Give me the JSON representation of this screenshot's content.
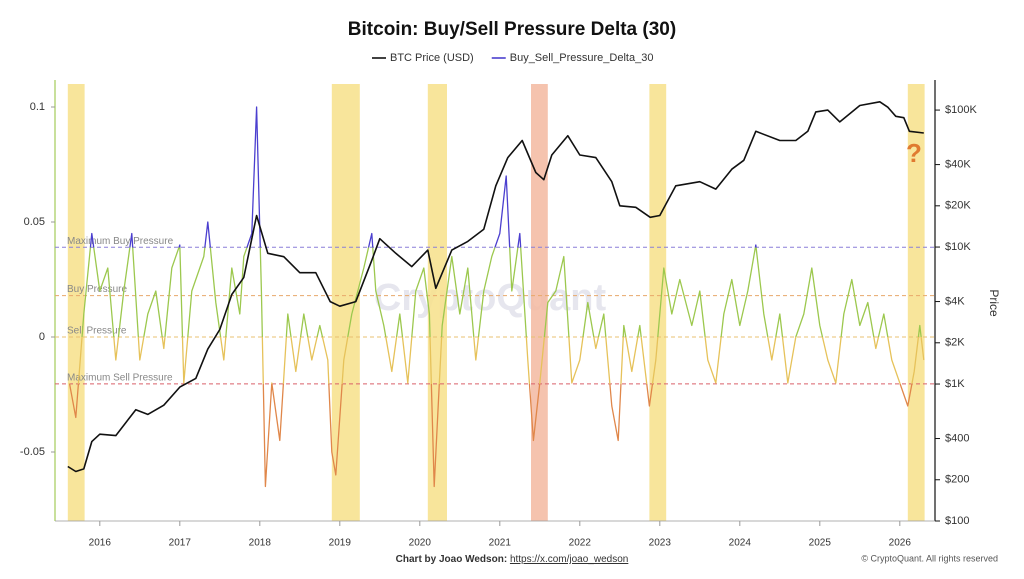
{
  "chart_data": {
    "type": "line",
    "title": "Bitcoin: Buy/Sell Pressure Delta (30)",
    "y2_label": "Price",
    "watermark": "CryptoQuant",
    "annotation": "?",
    "credit": {
      "label": "Chart by Joao Wedson:",
      "url": "https://x.com/joao_wedson"
    },
    "copyright": "© CryptoQuant. All rights reserved",
    "xlim": [
      2015.44,
      2026.44
    ],
    "xticks": [
      2016,
      2017,
      2018,
      2019,
      2020,
      2021,
      2022,
      2023,
      2024,
      2025,
      2026
    ],
    "ylim": [
      -0.08,
      0.11
    ],
    "yticks": [
      0.1,
      0.05,
      0,
      -0.05
    ],
    "y2lim": [
      100,
      155000
    ],
    "y2log": true,
    "y2ticks": [
      {
        "value": 100000,
        "label": "$100K"
      },
      {
        "value": 40000,
        "label": "$40K"
      },
      {
        "value": 20000,
        "label": "$20K"
      },
      {
        "value": 10000,
        "label": "$10K"
      },
      {
        "value": 4000,
        "label": "$4K"
      },
      {
        "value": 2000,
        "label": "$2K"
      },
      {
        "value": 1000,
        "label": "$1K"
      },
      {
        "value": 400,
        "label": "$400"
      },
      {
        "value": 200,
        "label": "$200"
      },
      {
        "value": 100,
        "label": "$100"
      }
    ],
    "highlight_bands": [
      {
        "range": [
          2015.6,
          2015.81
        ],
        "color": "#f7e08a"
      },
      {
        "range": [
          2018.9,
          2019.25
        ],
        "color": "#f7e08a"
      },
      {
        "range": [
          2020.1,
          2020.34
        ],
        "color": "#f7e08a"
      },
      {
        "range": [
          2021.39,
          2021.6
        ],
        "color": "#f3b9a0"
      },
      {
        "range": [
          2022.87,
          2023.08
        ],
        "color": "#f7e08a"
      },
      {
        "range": [
          2026.1,
          2026.31
        ],
        "color": "#f7e08a"
      }
    ],
    "reference_lines": [
      {
        "label": "Maximum Buy Pressure",
        "value": 0.039,
        "color": "#8a7fd8"
      },
      {
        "label": "Buy Pressure",
        "value": 0.018,
        "color": "#e8a86a"
      },
      {
        "label": "Sell Pressure",
        "value": 0,
        "color": "#e8c070"
      },
      {
        "label": "Maximum Sell Pressure",
        "value": -0.0204,
        "color": "#d9606a"
      }
    ],
    "series": [
      {
        "name": "BTC Price (USD)",
        "color": "#111111",
        "axis": "y2",
        "x": [
          2015.6,
          2015.7,
          2015.8,
          2015.9,
          2016.0,
          2016.2,
          2016.45,
          2016.6,
          2016.8,
          2017.0,
          2017.2,
          2017.35,
          2017.5,
          2017.65,
          2017.8,
          2017.96,
          2018.1,
          2018.3,
          2018.5,
          2018.7,
          2018.88,
          2019.0,
          2019.2,
          2019.4,
          2019.5,
          2019.7,
          2019.9,
          2020.1,
          2020.2,
          2020.4,
          2020.6,
          2020.8,
          2020.95,
          2021.1,
          2021.28,
          2021.45,
          2021.55,
          2021.65,
          2021.85,
          2022.0,
          2022.2,
          2022.4,
          2022.5,
          2022.7,
          2022.88,
          2023.0,
          2023.2,
          2023.5,
          2023.7,
          2023.9,
          2024.05,
          2024.2,
          2024.5,
          2024.7,
          2024.85,
          2024.95,
          2025.1,
          2025.25,
          2025.5,
          2025.75,
          2025.85,
          2025.95,
          2026.05,
          2026.12,
          2026.3
        ],
        "values": [
          250,
          230,
          240,
          380,
          430,
          420,
          650,
          600,
          700,
          950,
          1100,
          1800,
          2500,
          4500,
          6000,
          17000,
          9000,
          8500,
          6500,
          6500,
          4000,
          3700,
          4000,
          8000,
          11500,
          9000,
          7200,
          9500,
          5000,
          9500,
          11000,
          13500,
          28000,
          45000,
          60000,
          35000,
          31000,
          47000,
          65000,
          47000,
          45000,
          30000,
          20000,
          19500,
          16500,
          17000,
          28000,
          30000,
          26500,
          37000,
          43000,
          70000,
          60000,
          60000,
          70000,
          97000,
          100000,
          82000,
          108000,
          115000,
          105000,
          90000,
          88000,
          70000,
          68000
        ]
      },
      {
        "name": "Buy_Sell_Pressure_Delta_30",
        "color": "#4b3fcf",
        "x": [
          2015.62,
          2015.7,
          2015.8,
          2015.9,
          2016.0,
          2016.1,
          2016.2,
          2016.3,
          2016.4,
          2016.5,
          2016.6,
          2016.7,
          2016.8,
          2016.9,
          2017.0,
          2017.05,
          2017.15,
          2017.3,
          2017.35,
          2017.45,
          2017.55,
          2017.65,
          2017.75,
          2017.8,
          2017.9,
          2017.96,
          2018.02,
          2018.07,
          2018.15,
          2018.25,
          2018.35,
          2018.45,
          2018.55,
          2018.65,
          2018.75,
          2018.85,
          2018.9,
          2018.95,
          2019.05,
          2019.15,
          2019.3,
          2019.4,
          2019.45,
          2019.55,
          2019.65,
          2019.75,
          2019.85,
          2019.95,
          2020.05,
          2020.12,
          2020.18,
          2020.28,
          2020.4,
          2020.5,
          2020.6,
          2020.7,
          2020.8,
          2020.9,
          2021.0,
          2021.08,
          2021.15,
          2021.25,
          2021.35,
          2021.42,
          2021.5,
          2021.6,
          2021.7,
          2021.8,
          2021.9,
          2022.0,
          2022.1,
          2022.2,
          2022.3,
          2022.4,
          2022.48,
          2022.55,
          2022.65,
          2022.75,
          2022.87,
          2022.95,
          2023.05,
          2023.15,
          2023.25,
          2023.4,
          2023.5,
          2023.6,
          2023.7,
          2023.8,
          2023.9,
          2024.0,
          2024.1,
          2024.2,
          2024.3,
          2024.4,
          2024.5,
          2024.6,
          2024.7,
          2024.8,
          2024.9,
          2025.0,
          2025.1,
          2025.2,
          2025.3,
          2025.4,
          2025.5,
          2025.6,
          2025.7,
          2025.8,
          2025.9,
          2026.0,
          2026.1,
          2026.18,
          2026.25,
          2026.3
        ],
        "values": [
          -0.02,
          -0.035,
          0.01,
          0.045,
          0.02,
          0.03,
          -0.01,
          0.02,
          0.045,
          -0.01,
          0.01,
          0.02,
          -0.005,
          0.03,
          0.04,
          -0.02,
          0.02,
          0.035,
          0.05,
          0.015,
          -0.01,
          0.03,
          0.01,
          0.035,
          0.045,
          0.1,
          0.02,
          -0.065,
          -0.02,
          -0.045,
          0.01,
          -0.015,
          0.01,
          -0.01,
          0.005,
          -0.01,
          -0.05,
          -0.06,
          -0.01,
          0.01,
          0.03,
          0.045,
          0.02,
          0.005,
          -0.015,
          0.01,
          -0.02,
          0.02,
          0.03,
          0.01,
          -0.065,
          0.005,
          0.035,
          0.01,
          0.03,
          -0.01,
          0.02,
          0.035,
          0.045,
          0.07,
          0.02,
          0.045,
          -0.01,
          -0.045,
          -0.02,
          0.015,
          0.02,
          0.035,
          -0.02,
          -0.01,
          0.015,
          -0.005,
          0.01,
          -0.03,
          -0.045,
          0.005,
          -0.015,
          0.005,
          -0.03,
          -0.01,
          0.03,
          0.01,
          0.025,
          0.005,
          0.02,
          -0.01,
          -0.02,
          0.01,
          0.025,
          0.005,
          0.02,
          0.04,
          0.01,
          -0.01,
          0.01,
          -0.02,
          0,
          0.01,
          0.03,
          0.005,
          -0.01,
          -0.02,
          0.01,
          0.025,
          0.005,
          0.015,
          -0.005,
          0.01,
          -0.01,
          -0.02,
          -0.03,
          -0.015,
          0.005,
          -0.01
        ],
        "color_stops": [
          {
            "above": 0.039,
            "color": "#4b3fcf"
          },
          {
            "above": 0,
            "color": "#9cc84e"
          },
          {
            "above": -0.0204,
            "color": "#e6c25a"
          },
          {
            "above": -0.08,
            "color": "#e0874a"
          }
        ]
      }
    ]
  }
}
